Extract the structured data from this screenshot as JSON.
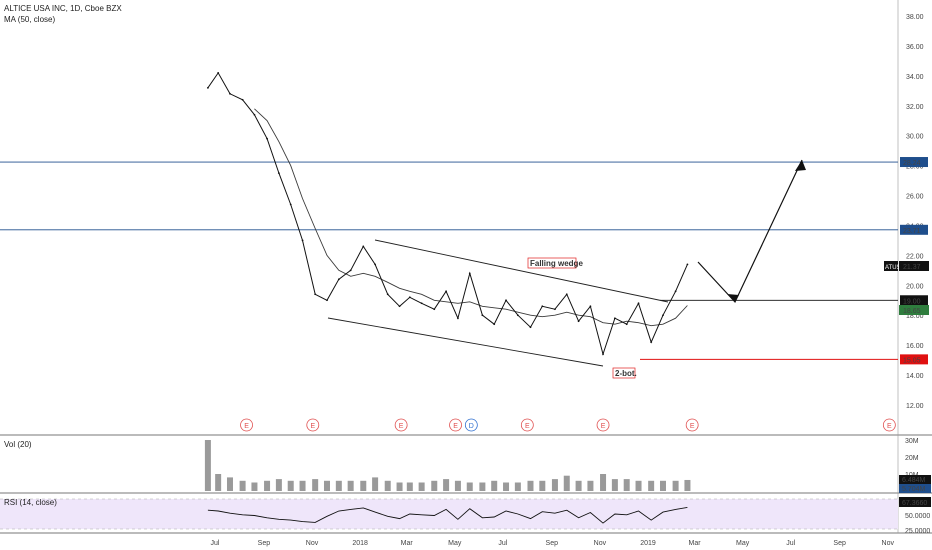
{
  "header": {
    "title": "ALTICE USA INC, 1D, Cboe BZX",
    "indicator": "MA (50, close)"
  },
  "price_axis": {
    "ticks": [
      "38.00",
      "36.00",
      "34.00",
      "32.00",
      "30.00",
      "28.00",
      "26.00",
      "24.00",
      "22.00",
      "20.00",
      "18.00",
      "16.00",
      "14.00",
      "12.00"
    ]
  },
  "x_axis": {
    "labels": [
      "Jul",
      "Sep",
      "Nov",
      "2018",
      "Mar",
      "May",
      "Jul",
      "Sep",
      "Nov",
      "2019",
      "Mar",
      "May",
      "Jul",
      "Sep",
      "Nov"
    ]
  },
  "levels": [
    {
      "value": "28.24",
      "color": "#1f4e8c",
      "style": "blue"
    },
    {
      "value": "23.71",
      "color": "#1f4e8c",
      "style": "blue"
    },
    {
      "value": "19.00",
      "color": "#111111",
      "style": "black"
    },
    {
      "value": "15.05",
      "color": "#e01010",
      "style": "red"
    }
  ],
  "badges": {
    "symbol": "ATUS",
    "last_price": "21.37",
    "ma_value": "18.65"
  },
  "annotations": {
    "wedge": "Falling wedge",
    "bottom": "2-bot."
  },
  "events": {
    "earnings_label": "E",
    "dividend_label": "D"
  },
  "volume": {
    "title": "Vol (20)",
    "ticks": [
      "30M",
      "20M",
      "10M"
    ],
    "badge_vol": "6.484M",
    "badge_ma": "5.704M"
  },
  "rsi": {
    "title": "RSI (14, close)",
    "badge": "67.3660",
    "ticks": [
      "50.0000",
      "25.0000"
    ]
  },
  "colors": {
    "price": "#111111",
    "ma": "#3a3a3a",
    "volume": "#9a9a9a",
    "rsi": "#111111",
    "rsi_band": "#efe6fa",
    "earnings": "#e05050",
    "dividend": "#3070d0"
  },
  "chart_data": {
    "type": "line",
    "x": [
      "2017-06-22",
      "2017-07-05",
      "2017-07-20",
      "2017-08-05",
      "2017-08-20",
      "2017-09-05",
      "2017-09-20",
      "2017-10-05",
      "2017-10-20",
      "2017-11-05",
      "2017-11-20",
      "2017-12-05",
      "2017-12-20",
      "2018-01-05",
      "2018-01-20",
      "2018-02-05",
      "2018-02-20",
      "2018-03-05",
      "2018-03-20",
      "2018-04-05",
      "2018-04-20",
      "2018-05-05",
      "2018-05-20",
      "2018-06-05",
      "2018-06-20",
      "2018-07-05",
      "2018-07-20",
      "2018-08-05",
      "2018-08-20",
      "2018-09-05",
      "2018-09-20",
      "2018-10-05",
      "2018-10-20",
      "2018-11-05",
      "2018-11-20",
      "2018-12-05",
      "2018-12-20",
      "2019-01-05",
      "2019-01-20",
      "2019-02-05",
      "2019-02-20"
    ],
    "series": [
      {
        "values": [
          33.2,
          34.2,
          32.8,
          32.4,
          31.4,
          29.8,
          27.5,
          25.4,
          23.0,
          19.4,
          19.0,
          20.4,
          21.0,
          22.6,
          21.4,
          19.4,
          18.6,
          19.2,
          18.8,
          18.4,
          19.6,
          17.8,
          20.8,
          18.0,
          17.4,
          19.0,
          18.0,
          17.2,
          18.6,
          18.4,
          19.4,
          17.6,
          18.6,
          15.4,
          17.8,
          17.4,
          18.8,
          16.2,
          18.0,
          19.6,
          21.4
        ]
      },
      {
        "values": [
          null,
          null,
          null,
          null,
          31.8,
          31.0,
          29.6,
          28.0,
          25.8,
          23.8,
          22.0,
          21.0,
          20.6,
          20.8,
          20.6,
          20.2,
          19.8,
          19.6,
          19.4,
          19.0,
          18.9,
          18.8,
          18.9,
          18.6,
          18.5,
          18.4,
          18.2,
          18.0,
          17.9,
          18.0,
          18.2,
          18.0,
          17.9,
          17.5,
          17.4,
          17.6,
          17.5,
          17.3,
          17.4,
          17.8,
          18.65
        ]
      }
    ],
    "volume_values": [
      30,
      10,
      8,
      6,
      5,
      6,
      7,
      6,
      6,
      7,
      6,
      6,
      6,
      6,
      8,
      6,
      5,
      5,
      5,
      6,
      7,
      6,
      5,
      5,
      6,
      5,
      5,
      6,
      6,
      7,
      9,
      6,
      6,
      10,
      7,
      7,
      6,
      6,
      6,
      6,
      6.484
    ],
    "rsi_values": [
      60,
      58,
      52,
      48,
      46,
      40,
      36,
      34,
      30,
      28,
      44,
      58,
      62,
      66,
      55,
      44,
      38,
      50,
      48,
      46,
      62,
      36,
      64,
      40,
      42,
      58,
      50,
      38,
      56,
      52,
      60,
      40,
      54,
      26,
      50,
      48,
      58,
      34,
      55,
      62,
      67.366
    ],
    "ylim": [
      11,
      39
    ],
    "grid": false
  }
}
